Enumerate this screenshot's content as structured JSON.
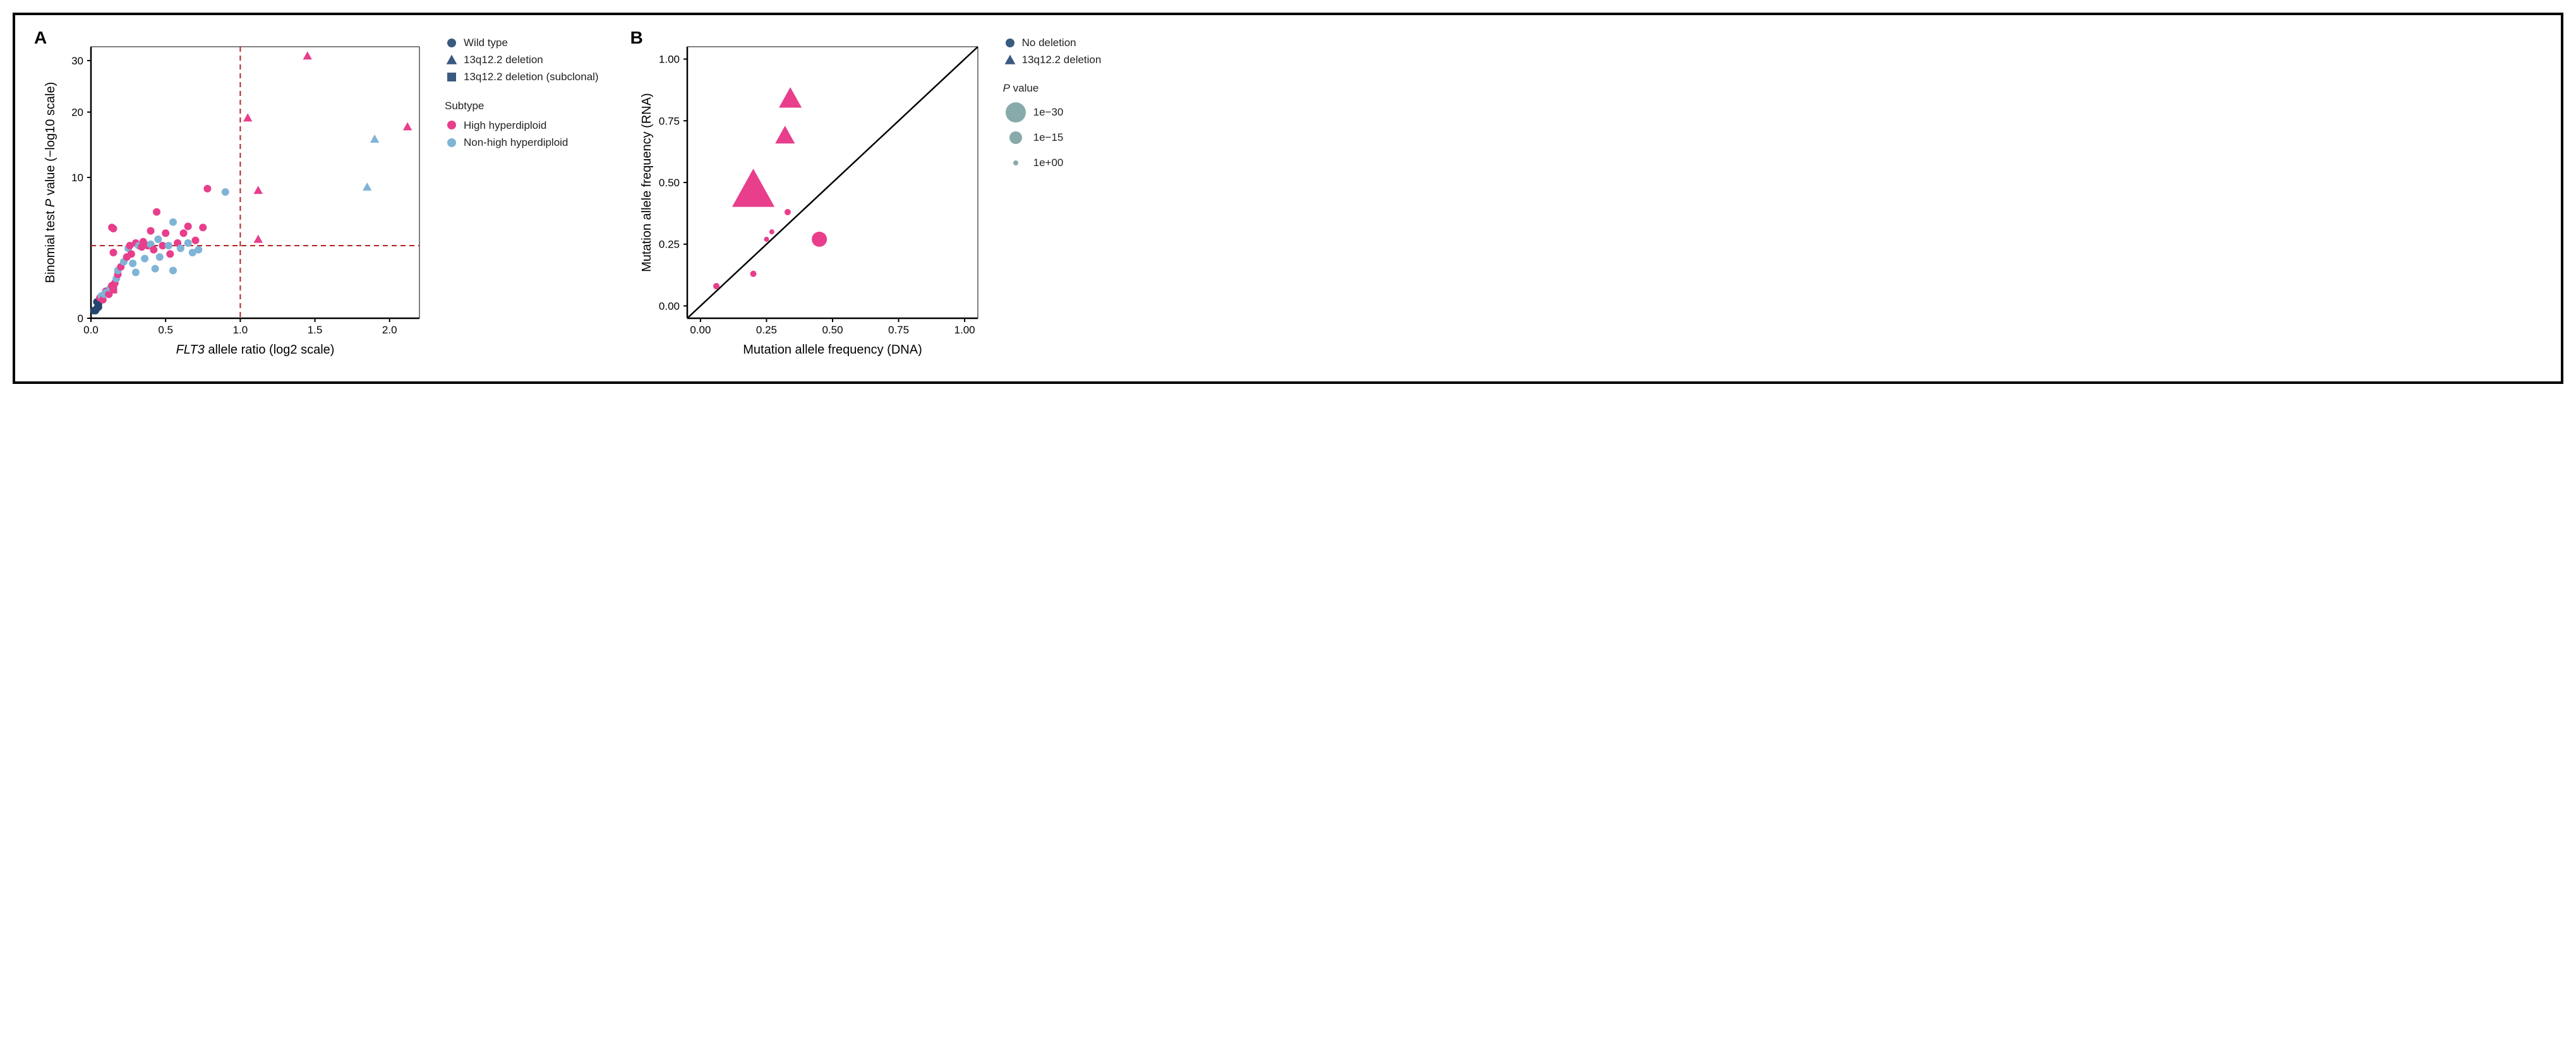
{
  "panel_a": {
    "label": "A",
    "type": "scatter",
    "x_label_prefix": "FLT3",
    "x_label_suffix": " allele ratio (log2 scale)",
    "y_label_prefix": "Binomial test ",
    "y_label_mid": "P",
    "y_label_suffix": " value (−log10 scale)",
    "xlim": [
      0,
      2.2
    ],
    "ylim": [
      0,
      33
    ],
    "xticks": [
      0.0,
      0.5,
      1.0,
      1.5,
      2.0
    ],
    "yticks": [
      0,
      10,
      20,
      30
    ],
    "vline": 1.0,
    "hline": 3.0,
    "dashed_color": "#b22222",
    "axis_color": "#000000",
    "background_color": "#ffffff",
    "colors": {
      "wildtype": "#26456e",
      "hyper": "#e83e8c",
      "nonhyper": "#7fb4d6"
    },
    "legend_shape": [
      {
        "label": "Wild type",
        "shape": "circle"
      },
      {
        "label": "13q12.2 deletion",
        "shape": "triangle"
      },
      {
        "label": "13q12.2 deletion (subclonal)",
        "shape": "square"
      }
    ],
    "legend_color_heading": "Subtype",
    "legend_color": [
      {
        "label": "High hyperdiploid",
        "key": "hyper"
      },
      {
        "label": "Non-high hyperdiploid",
        "key": "nonhyper"
      }
    ],
    "points": [
      {
        "x": 0.02,
        "y": 0.05,
        "shape": "circle",
        "color": "wildtype"
      },
      {
        "x": 0.03,
        "y": 0.05,
        "shape": "circle",
        "color": "wildtype"
      },
      {
        "x": 0.04,
        "y": 0.08,
        "shape": "circle",
        "color": "wildtype"
      },
      {
        "x": 0.05,
        "y": 0.1,
        "shape": "circle",
        "color": "wildtype"
      },
      {
        "x": 0.05,
        "y": 0.15,
        "shape": "circle",
        "color": "wildtype"
      },
      {
        "x": 0.04,
        "y": 0.2,
        "shape": "circle",
        "color": "wildtype"
      },
      {
        "x": 0.06,
        "y": 0.3,
        "shape": "circle",
        "color": "hyper"
      },
      {
        "x": 0.07,
        "y": 0.35,
        "shape": "circle",
        "color": "nonhyper"
      },
      {
        "x": 0.08,
        "y": 0.25,
        "shape": "circle",
        "color": "hyper"
      },
      {
        "x": 0.09,
        "y": 0.4,
        "shape": "circle",
        "color": "nonhyper"
      },
      {
        "x": 0.1,
        "y": 0.5,
        "shape": "circle",
        "color": "hyper"
      },
      {
        "x": 0.1,
        "y": 0.45,
        "shape": "circle",
        "color": "nonhyper"
      },
      {
        "x": 0.12,
        "y": 0.4,
        "shape": "circle",
        "color": "hyper"
      },
      {
        "x": 0.13,
        "y": 0.6,
        "shape": "circle",
        "color": "nonhyper"
      },
      {
        "x": 0.14,
        "y": 0.7,
        "shape": "circle",
        "color": "hyper"
      },
      {
        "x": 0.15,
        "y": 0.55,
        "shape": "square",
        "color": "hyper"
      },
      {
        "x": 0.16,
        "y": 0.8,
        "shape": "circle",
        "color": "hyper"
      },
      {
        "x": 0.17,
        "y": 1.0,
        "shape": "circle",
        "color": "nonhyper"
      },
      {
        "x": 0.18,
        "y": 1.2,
        "shape": "circle",
        "color": "hyper"
      },
      {
        "x": 0.18,
        "y": 1.4,
        "shape": "circle",
        "color": "nonhyper"
      },
      {
        "x": 0.15,
        "y": 2.5,
        "shape": "circle",
        "color": "hyper"
      },
      {
        "x": 0.15,
        "y": 4.4,
        "shape": "circle",
        "color": "hyper"
      },
      {
        "x": 0.14,
        "y": 4.5,
        "shape": "circle",
        "color": "hyper"
      },
      {
        "x": 0.2,
        "y": 1.6,
        "shape": "circle",
        "color": "hyper"
      },
      {
        "x": 0.22,
        "y": 1.9,
        "shape": "circle",
        "color": "nonhyper"
      },
      {
        "x": 0.24,
        "y": 2.2,
        "shape": "circle",
        "color": "hyper"
      },
      {
        "x": 0.25,
        "y": 2.8,
        "shape": "circle",
        "color": "nonhyper"
      },
      {
        "x": 0.26,
        "y": 3.0,
        "shape": "circle",
        "color": "hyper"
      },
      {
        "x": 0.27,
        "y": 2.4,
        "shape": "circle",
        "color": "hyper"
      },
      {
        "x": 0.28,
        "y": 1.8,
        "shape": "circle",
        "color": "nonhyper"
      },
      {
        "x": 0.3,
        "y": 3.2,
        "shape": "circle",
        "color": "hyper"
      },
      {
        "x": 0.3,
        "y": 1.3,
        "shape": "circle",
        "color": "nonhyper"
      },
      {
        "x": 0.32,
        "y": 3.0,
        "shape": "circle",
        "color": "nonhyper"
      },
      {
        "x": 0.34,
        "y": 2.9,
        "shape": "circle",
        "color": "hyper"
      },
      {
        "x": 0.35,
        "y": 3.3,
        "shape": "circle",
        "color": "hyper"
      },
      {
        "x": 0.36,
        "y": 2.1,
        "shape": "circle",
        "color": "nonhyper"
      },
      {
        "x": 0.38,
        "y": 3.0,
        "shape": "circle",
        "color": "hyper"
      },
      {
        "x": 0.4,
        "y": 3.1,
        "shape": "circle",
        "color": "nonhyper"
      },
      {
        "x": 0.4,
        "y": 4.2,
        "shape": "circle",
        "color": "hyper"
      },
      {
        "x": 0.42,
        "y": 2.7,
        "shape": "circle",
        "color": "hyper"
      },
      {
        "x": 0.43,
        "y": 1.5,
        "shape": "circle",
        "color": "nonhyper"
      },
      {
        "x": 0.44,
        "y": 6.0,
        "shape": "circle",
        "color": "hyper"
      },
      {
        "x": 0.45,
        "y": 3.5,
        "shape": "circle",
        "color": "nonhyper"
      },
      {
        "x": 0.46,
        "y": 2.2,
        "shape": "circle",
        "color": "nonhyper"
      },
      {
        "x": 0.48,
        "y": 3.0,
        "shape": "circle",
        "color": "hyper"
      },
      {
        "x": 0.5,
        "y": 4.0,
        "shape": "circle",
        "color": "hyper"
      },
      {
        "x": 0.52,
        "y": 3.0,
        "shape": "circle",
        "color": "nonhyper"
      },
      {
        "x": 0.53,
        "y": 2.4,
        "shape": "circle",
        "color": "hyper"
      },
      {
        "x": 0.55,
        "y": 5.0,
        "shape": "circle",
        "color": "nonhyper"
      },
      {
        "x": 0.55,
        "y": 1.4,
        "shape": "circle",
        "color": "nonhyper"
      },
      {
        "x": 0.58,
        "y": 3.2,
        "shape": "circle",
        "color": "hyper"
      },
      {
        "x": 0.6,
        "y": 2.8,
        "shape": "circle",
        "color": "nonhyper"
      },
      {
        "x": 0.62,
        "y": 4.0,
        "shape": "circle",
        "color": "hyper"
      },
      {
        "x": 0.65,
        "y": 3.2,
        "shape": "circle",
        "color": "nonhyper"
      },
      {
        "x": 0.65,
        "y": 4.6,
        "shape": "circle",
        "color": "hyper"
      },
      {
        "x": 0.68,
        "y": 2.5,
        "shape": "circle",
        "color": "nonhyper"
      },
      {
        "x": 0.7,
        "y": 3.4,
        "shape": "circle",
        "color": "hyper"
      },
      {
        "x": 0.72,
        "y": 2.7,
        "shape": "circle",
        "color": "nonhyper"
      },
      {
        "x": 0.75,
        "y": 4.5,
        "shape": "circle",
        "color": "hyper"
      },
      {
        "x": 0.78,
        "y": 8.6,
        "shape": "circle",
        "color": "hyper"
      },
      {
        "x": 0.9,
        "y": 8.2,
        "shape": "circle",
        "color": "nonhyper"
      },
      {
        "x": 1.05,
        "y": 19.0,
        "shape": "triangle",
        "color": "hyper"
      },
      {
        "x": 1.12,
        "y": 8.4,
        "shape": "triangle",
        "color": "hyper"
      },
      {
        "x": 1.12,
        "y": 3.5,
        "shape": "triangle",
        "color": "hyper"
      },
      {
        "x": 1.45,
        "y": 31.0,
        "shape": "triangle",
        "color": "hyper"
      },
      {
        "x": 1.85,
        "y": 8.8,
        "shape": "triangle",
        "color": "nonhyper"
      },
      {
        "x": 1.9,
        "y": 15.5,
        "shape": "triangle",
        "color": "nonhyper"
      },
      {
        "x": 2.12,
        "y": 17.5,
        "shape": "triangle",
        "color": "hyper"
      }
    ]
  },
  "panel_b": {
    "label": "B",
    "type": "scatter",
    "x_label": "Mutation allele frequency (DNA)",
    "y_label": "Mutation allele frequency (RNA)",
    "xlim": [
      -0.05,
      1.05
    ],
    "ylim": [
      -0.05,
      1.05
    ],
    "xticks": [
      0.0,
      0.25,
      0.5,
      0.75,
      1.0
    ],
    "yticks": [
      0.0,
      0.25,
      0.5,
      0.75,
      1.0
    ],
    "diag_color": "#000000",
    "axis_color": "#000000",
    "background_color": "#ffffff",
    "point_color": "#e83e8c",
    "legend_shape": [
      {
        "label": "No deletion",
        "shape": "circle"
      },
      {
        "label": "13q12.2 deletion",
        "shape": "triangle"
      }
    ],
    "legend_size_heading_prefix": "P",
    "legend_size_heading_suffix": " value",
    "legend_size": [
      {
        "label": "1e−30",
        "r": 16
      },
      {
        "label": "1e−15",
        "r": 10
      },
      {
        "label": "1e+00",
        "r": 4
      }
    ],
    "points": [
      {
        "x": 0.06,
        "y": 0.08,
        "shape": "circle",
        "r": 5
      },
      {
        "x": 0.2,
        "y": 0.13,
        "shape": "circle",
        "r": 5
      },
      {
        "x": 0.25,
        "y": 0.27,
        "shape": "circle",
        "r": 4
      },
      {
        "x": 0.27,
        "y": 0.3,
        "shape": "circle",
        "r": 4
      },
      {
        "x": 0.33,
        "y": 0.38,
        "shape": "circle",
        "r": 5
      },
      {
        "x": 0.45,
        "y": 0.27,
        "shape": "circle",
        "r": 12
      },
      {
        "x": 0.2,
        "y": 0.47,
        "shape": "triangle",
        "r": 28
      },
      {
        "x": 0.32,
        "y": 0.69,
        "shape": "triangle",
        "r": 13
      },
      {
        "x": 0.34,
        "y": 0.84,
        "shape": "triangle",
        "r": 15
      }
    ]
  }
}
